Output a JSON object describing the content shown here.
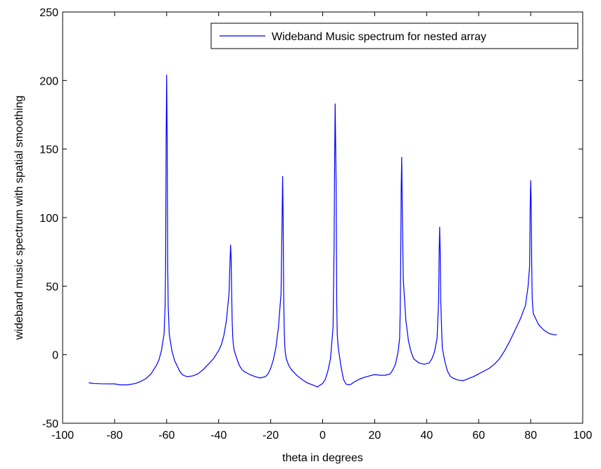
{
  "chart_data": {
    "type": "line",
    "xlabel": "theta in degrees",
    "ylabel": "wideband music spectrum with spatial smoothing",
    "xlim": [
      -100,
      100
    ],
    "ylim": [
      -50,
      250
    ],
    "xticks": [
      -100,
      -80,
      -60,
      -40,
      -20,
      0,
      20,
      40,
      60,
      80,
      100
    ],
    "yticks": [
      -50,
      0,
      50,
      100,
      150,
      200,
      250
    ],
    "xtick_labels": [
      "-100",
      "-80",
      "-60",
      "-40",
      "-20",
      "0",
      "20",
      "40",
      "60",
      "80",
      "100"
    ],
    "ytick_labels": [
      "-50",
      "0",
      "50",
      "100",
      "150",
      "200",
      "250"
    ],
    "grid": false,
    "legend_position": "top-right",
    "series": [
      {
        "name": "Wideband Music spectrum for nested array",
        "color": "#0000ff",
        "x": [
          -90,
          -88,
          -85,
          -80,
          -78,
          -75,
          -72,
          -70,
          -68,
          -66,
          -64,
          -63,
          -62,
          -61,
          -60.6,
          -60.4,
          -60.2,
          -60,
          -59.8,
          -59.6,
          -59.4,
          -59,
          -58,
          -57,
          -56,
          -55,
          -54,
          -53,
          -52,
          -50,
          -48,
          -46,
          -44,
          -42,
          -40,
          -39,
          -38,
          -37,
          -36,
          -35.6,
          -35.4,
          -35.2,
          -35,
          -34.8,
          -34.6,
          -34.4,
          -34,
          -33,
          -32,
          -31,
          -30,
          -28,
          -26,
          -24,
          -22,
          -21,
          -20,
          -19,
          -18,
          -17,
          -16,
          -15.6,
          -15.4,
          -15.2,
          -15,
          -14.8,
          -14.6,
          -14.4,
          -14,
          -13,
          -12,
          -11,
          -10,
          -8,
          -6,
          -4,
          -2,
          0,
          1,
          2,
          3,
          4,
          4.4,
          4.6,
          4.8,
          5,
          5.2,
          5.4,
          5.6,
          6,
          7,
          8,
          9,
          10,
          11,
          12,
          14,
          16,
          18,
          20,
          22,
          24,
          26,
          27,
          28,
          29,
          29.6,
          29.8,
          30,
          30.2,
          30.4,
          30.6,
          31,
          32,
          33,
          34,
          35,
          37,
          39,
          41,
          42,
          43,
          44,
          44.6,
          44.8,
          45,
          45.2,
          45.4,
          46,
          47,
          48,
          49,
          50,
          52,
          54,
          56,
          58,
          60,
          62,
          64,
          66,
          68,
          70,
          72,
          74,
          76,
          78,
          79,
          79.6,
          79.8,
          80,
          80.2,
          80.4,
          80.6,
          81,
          82,
          83,
          85,
          87,
          89,
          90
        ],
        "values": [
          -20.5,
          -21,
          -21.2,
          -21.3,
          -22,
          -22,
          -21,
          -19.5,
          -17.5,
          -14,
          -8,
          -4,
          3,
          15,
          35,
          65,
          157,
          204,
          157,
          65,
          35,
          15,
          3,
          -4,
          -8,
          -12,
          -14.5,
          -15.5,
          -16,
          -15.5,
          -14,
          -11,
          -7,
          -3,
          3,
          7,
          14,
          25,
          45,
          70,
          80,
          70,
          45,
          25,
          14,
          8,
          3,
          -3,
          -8,
          -11,
          -12.5,
          -14.5,
          -16,
          -17,
          -16,
          -14,
          -10,
          -4,
          5,
          20,
          45,
          100,
          130,
          100,
          45,
          20,
          8,
          2,
          -3,
          -8,
          -11,
          -13,
          -15,
          -18,
          -20.5,
          -22,
          -23.5,
          -21,
          -18,
          -12,
          -3,
          20,
          80,
          140,
          183,
          152,
          120,
          40,
          15,
          5,
          -8,
          -18,
          -21.5,
          -22,
          -21.5,
          -20,
          -18,
          -16.5,
          -15.5,
          -14.5,
          -15,
          -15,
          -14,
          -11,
          -7,
          2,
          12,
          30,
          65,
          122,
          144,
          108,
          55,
          25,
          10,
          2,
          -3,
          -6,
          -7,
          -6,
          -3,
          2,
          12,
          40,
          75,
          93,
          75,
          40,
          5,
          -5,
          -12,
          -15.5,
          -17,
          -18.5,
          -19,
          -17.5,
          -16,
          -14,
          -12,
          -10,
          -7,
          -3,
          3,
          10,
          18,
          26,
          36,
          50,
          65,
          107,
          127,
          107,
          65,
          40,
          30,
          26,
          22,
          18,
          15.5,
          14.5,
          14.5
        ]
      }
    ]
  }
}
